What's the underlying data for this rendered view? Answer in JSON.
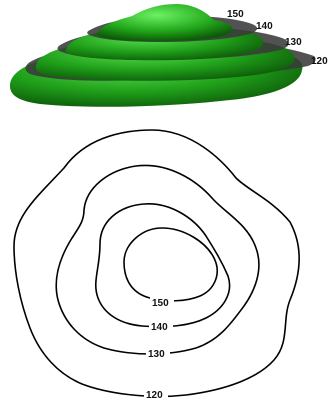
{
  "colors": {
    "terrain_light": "#4fd44a",
    "terrain_mid": "#1f9e19",
    "terrain_dark": "#0b5a08",
    "slice_plane": "#4a4a4a",
    "contour_line": "#000000",
    "background": "#ffffff"
  },
  "elevation_levels": {
    "level_150": "150",
    "level_140": "140",
    "level_130": "130",
    "level_120": "120"
  },
  "perspective_view": {
    "labels": {
      "l150": "150",
      "l140": "140",
      "l130": "130",
      "l120": "120"
    }
  },
  "contour_map": {
    "labels": {
      "l150": "150",
      "l140": "140",
      "l130": "130",
      "l120": "120"
    }
  }
}
